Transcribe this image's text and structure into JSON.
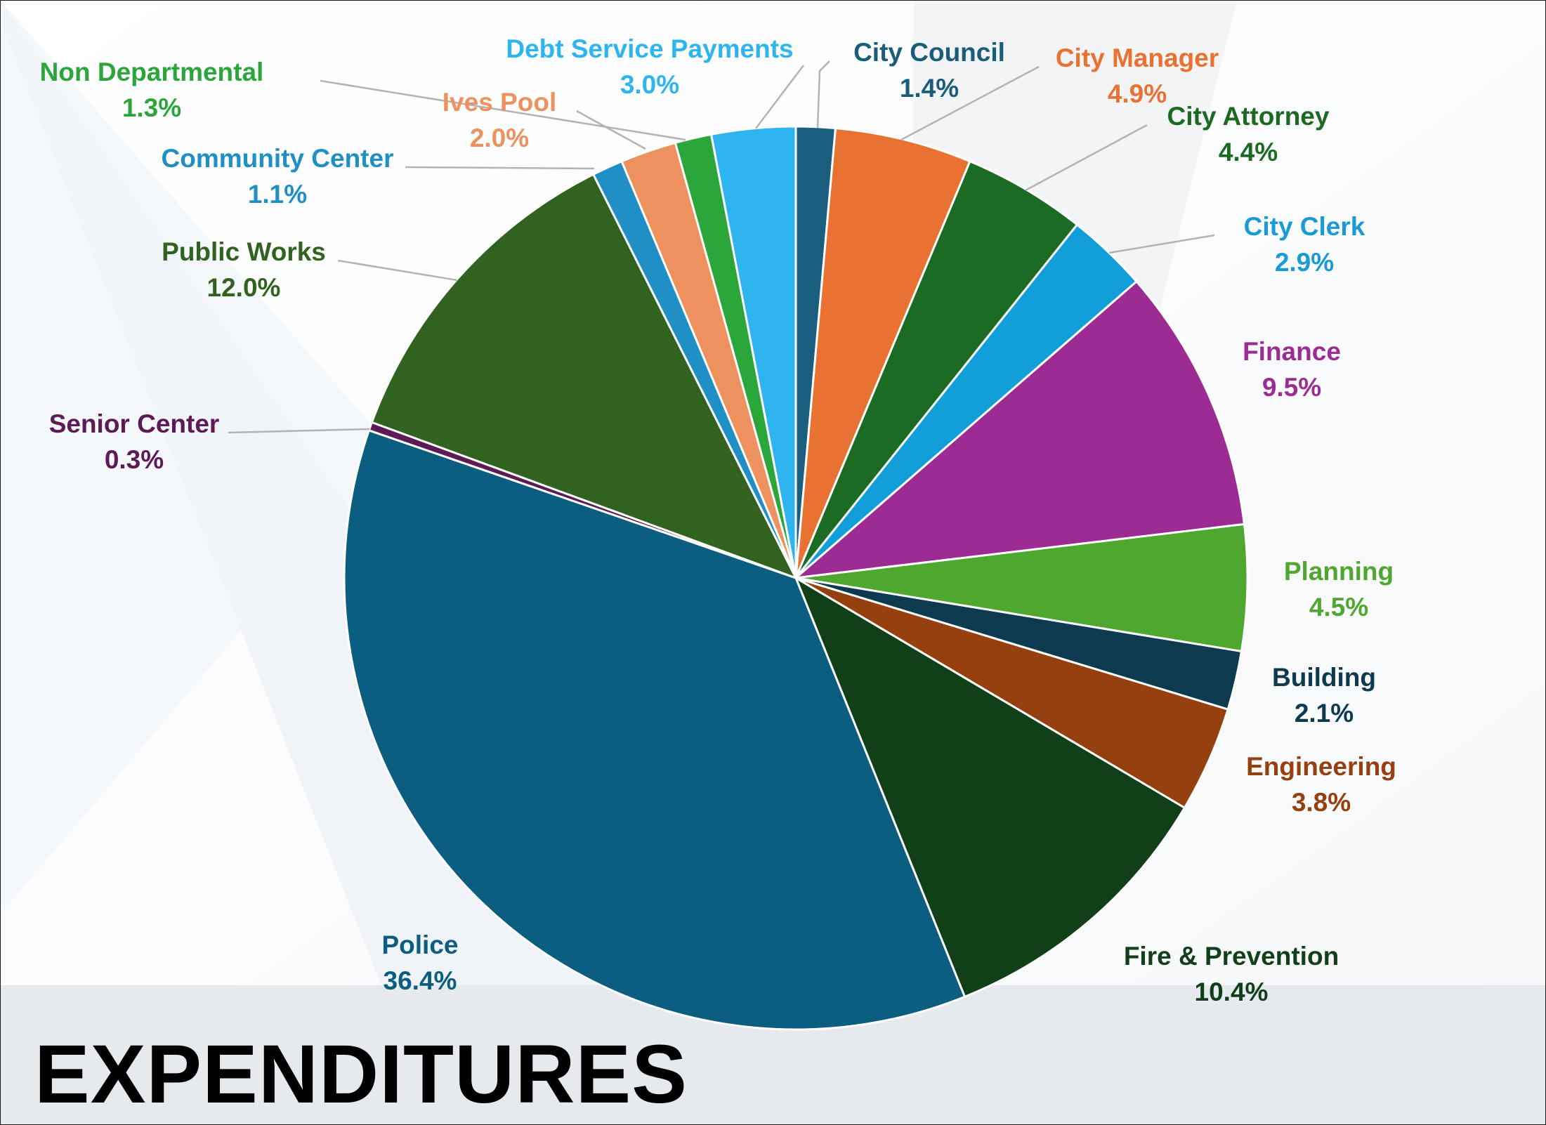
{
  "title": "EXPENDITURES",
  "chart_data": {
    "type": "pie",
    "start": "top-center, clockwise",
    "slices": [
      {
        "name": "City Council",
        "value": 1.4,
        "label": "1.4%",
        "color": "#1b5f80"
      },
      {
        "name": "City Manager",
        "value": 4.9,
        "label": "4.9%",
        "color": "#e97132"
      },
      {
        "name": "City Attorney",
        "value": 4.4,
        "label": "4.4%",
        "color": "#1b6b25"
      },
      {
        "name": "City Clerk",
        "value": 2.9,
        "label": "2.9%",
        "color": "#129fd9"
      },
      {
        "name": "Finance",
        "value": 9.5,
        "label": "9.5%",
        "color": "#9c2b93"
      },
      {
        "name": "Planning",
        "value": 4.5,
        "label": "4.5%",
        "color": "#4ea72e"
      },
      {
        "name": "Building",
        "value": 2.1,
        "label": "2.1%",
        "color": "#0e3a50"
      },
      {
        "name": "Engineering",
        "value": 3.8,
        "label": "3.8%",
        "color": "#96400f"
      },
      {
        "name": "Fire & Prevention",
        "value": 10.4,
        "label": "10.4%",
        "color": "#103f18"
      },
      {
        "name": "Police",
        "value": 36.4,
        "label": "36.4%",
        "color": "#0b5e80"
      },
      {
        "name": "Senior Center",
        "value": 0.3,
        "label": "0.3%",
        "color": "#5c1a57"
      },
      {
        "name": "Public Works",
        "value": 12.0,
        "label": "12.0%",
        "color": "#31621f"
      },
      {
        "name": "Community Center",
        "value": 1.1,
        "label": "1.1%",
        "color": "#1f8fc6"
      },
      {
        "name": "Ives Pool",
        "value": 2.0,
        "label": "2.0%",
        "color": "#ed915e"
      },
      {
        "name": "Non Departmental",
        "value": 1.3,
        "label": "1.3%",
        "color": "#2aa63b"
      },
      {
        "name": "Debt Service Payments",
        "value": 3.0,
        "label": "3.0%",
        "color": "#2eb5ef"
      }
    ],
    "label_text_colors": {
      "City Council": "#1a5d78",
      "City Manager": "#e97132",
      "City Attorney": "#1a6a22",
      "City Clerk": "#1a9ad6",
      "Finance": "#9c2b93",
      "Planning": "#4ea72e",
      "Building": "#0e3a50",
      "Engineering": "#96400f",
      "Fire & Prevention": "#103f18",
      "Police": "#0b5e80",
      "Senior Center": "#5c1a57",
      "Public Works": "#31621f",
      "Community Center": "#1f8fc6",
      "Ives Pool": "#ed915e",
      "Non Departmental": "#2aa63b",
      "Debt Service Payments": "#2eb5ef"
    },
    "legend": "none (category labels placed next to slices)"
  }
}
